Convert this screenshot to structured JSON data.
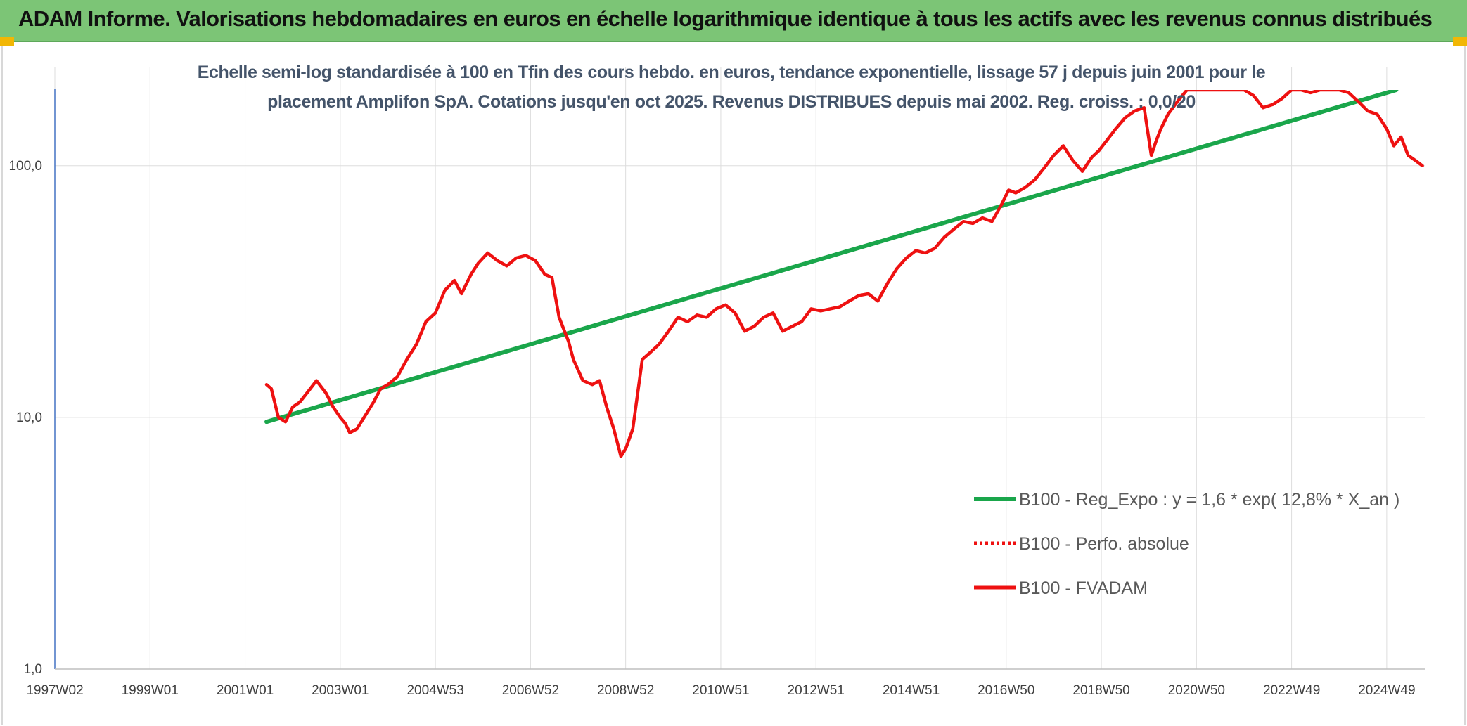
{
  "banner": {
    "title": "ADAM Informe. Valorisations hebdomadaires en euros en échelle logarithmique identique à tous les actifs avec les revenus connus distribués"
  },
  "colors": {
    "banner_bg": "#7cc576",
    "accent_corner": "#f2b705",
    "title_text": "#44546a",
    "series_regression": "#1aa64b",
    "series_fvadam": "#ee1111",
    "series_perf_abs": "#ee1111",
    "grid": "#dddddd",
    "y_axis_line": "#4472c4"
  },
  "chart_data": {
    "type": "line",
    "title_line1": "Echelle semi-log standardisée à 100 en Tfin des cours hebdo. en euros, tendance exponentielle, lissage 57 j depuis juin 2001 pour le",
    "title_line2": "placement Amplifon SpA. Cotations jusqu'en oct 2025. Revenus DISTRIBUES depuis mai 2002. Reg. croiss. : 0,0/20",
    "y_scale": "log",
    "ylim": [
      1,
      200
    ],
    "xlim": [
      1997.0,
      2025.8
    ],
    "yticks": [
      {
        "label": "1,0",
        "value": 1
      },
      {
        "label": "10,0",
        "value": 10
      },
      {
        "label": "100,0",
        "value": 100
      }
    ],
    "xticks": [
      {
        "label": "1997W02",
        "year": 1997.0
      },
      {
        "label": "1999W01",
        "year": 1999.0
      },
      {
        "label": "2001W01",
        "year": 2001.0
      },
      {
        "label": "2003W01",
        "year": 2003.0
      },
      {
        "label": "2004W53",
        "year": 2005.0
      },
      {
        "label": "2006W52",
        "year": 2007.0
      },
      {
        "label": "2008W52",
        "year": 2009.0
      },
      {
        "label": "2010W51",
        "year": 2011.0
      },
      {
        "label": "2012W51",
        "year": 2013.0
      },
      {
        "label": "2014W51",
        "year": 2015.0
      },
      {
        "label": "2016W50",
        "year": 2017.0
      },
      {
        "label": "2018W50",
        "year": 2019.0
      },
      {
        "label": "2020W50",
        "year": 2021.0
      },
      {
        "label": "2022W49",
        "year": 2023.0
      },
      {
        "label": "2024W49",
        "year": 2025.0
      }
    ],
    "grid": true,
    "legend_position": "right-center",
    "series": [
      {
        "name": "B100 - Reg_Expo : y = 1,6 * exp( 12,8% *  X_an )",
        "style": "solid-thick",
        "color": "#1aa64b",
        "x": [
          2001.45,
          2025.2
        ],
        "y": [
          9.6,
          200
        ]
      },
      {
        "name": "B100 - Perfo. absolue",
        "style": "dotted",
        "color": "#ee1111",
        "x": [],
        "y": []
      },
      {
        "name": "B100 - FVADAM",
        "style": "solid",
        "color": "#ee1111",
        "x": [
          2001.45,
          2001.55,
          2001.7,
          2001.85,
          2002.0,
          2002.15,
          2002.3,
          2002.5,
          2002.7,
          2002.85,
          2003.0,
          2003.1,
          2003.2,
          2003.35,
          2003.5,
          2003.7,
          2003.85,
          2004.0,
          2004.2,
          2004.4,
          2004.6,
          2004.8,
          2005.0,
          2005.2,
          2005.4,
          2005.55,
          2005.75,
          2005.9,
          2006.1,
          2006.3,
          2006.5,
          2006.7,
          2006.9,
          2007.1,
          2007.3,
          2007.45,
          2007.6,
          2007.8,
          2007.9,
          2008.1,
          2008.3,
          2008.45,
          2008.6,
          2008.75,
          2008.9,
          2009.0,
          2009.15,
          2009.35,
          2009.5,
          2009.7,
          2009.9,
          2010.1,
          2010.3,
          2010.5,
          2010.7,
          2010.9,
          2011.1,
          2011.3,
          2011.5,
          2011.7,
          2011.9,
          2012.1,
          2012.3,
          2012.5,
          2012.7,
          2012.9,
          2013.1,
          2013.3,
          2013.5,
          2013.7,
          2013.9,
          2014.1,
          2014.3,
          2014.5,
          2014.7,
          2014.9,
          2015.1,
          2015.3,
          2015.5,
          2015.7,
          2015.9,
          2016.1,
          2016.3,
          2016.5,
          2016.7,
          2016.9,
          2017.05,
          2017.2,
          2017.4,
          2017.6,
          2017.8,
          2018.0,
          2018.2,
          2018.4,
          2018.6,
          2018.8,
          2018.95,
          2019.1,
          2019.3,
          2019.5,
          2019.7,
          2019.9,
          2020.05,
          2020.15,
          2020.25,
          2020.4,
          2020.6,
          2020.8,
          2021.0,
          2021.2,
          2021.4,
          2021.6,
          2021.8,
          2022.0,
          2022.2,
          2022.4,
          2022.6,
          2022.8,
          2023.0,
          2023.2,
          2023.4,
          2023.6,
          2023.8,
          2024.0,
          2024.2,
          2024.4,
          2024.6,
          2024.8,
          2025.0,
          2025.15,
          2025.3,
          2025.45,
          2025.6,
          2025.75
        ],
        "y": [
          13.5,
          13.0,
          10.0,
          9.6,
          11.0,
          11.5,
          12.5,
          14.0,
          12.5,
          11.0,
          10.0,
          9.5,
          8.7,
          9.0,
          10.0,
          11.5,
          13.0,
          13.5,
          14.5,
          17.0,
          19.5,
          24.0,
          26.0,
          32.0,
          35.0,
          31.0,
          37.0,
          41.0,
          45.0,
          42.0,
          40.0,
          43.0,
          44.0,
          42.0,
          37.0,
          36.0,
          25.0,
          20.0,
          17.0,
          14.0,
          13.5,
          14.0,
          11.0,
          9.0,
          7.0,
          7.5,
          9.0,
          17.0,
          18.0,
          19.5,
          22.0,
          25.0,
          24.0,
          25.5,
          25.0,
          27.0,
          28.0,
          26.0,
          22.0,
          23.0,
          25.0,
          26.0,
          22.0,
          23.0,
          24.0,
          27.0,
          26.5,
          27.0,
          27.5,
          29.0,
          30.5,
          31.0,
          29.0,
          34.0,
          39.0,
          43.0,
          46.0,
          45.0,
          47.0,
          52.0,
          56.0,
          60.0,
          59.0,
          62.0,
          60.0,
          70.0,
          80.0,
          78.0,
          82.0,
          88.0,
          98.0,
          110.0,
          120.0,
          105.0,
          95.0,
          108.0,
          115.0,
          125.0,
          140.0,
          155.0,
          165.0,
          170.0,
          110.0,
          125.0,
          140.0,
          160.0,
          180.0,
          200.0,
          200.0,
          200.0,
          200.0,
          200.0,
          200.0,
          200.0,
          190.0,
          170.0,
          175.0,
          185.0,
          200.0,
          200.0,
          195.0,
          200.0,
          200.0,
          200.0,
          195.0,
          180.0,
          165.0,
          160.0,
          140.0,
          120.0,
          130.0,
          110.0,
          105.0,
          100.0
        ]
      }
    ]
  }
}
